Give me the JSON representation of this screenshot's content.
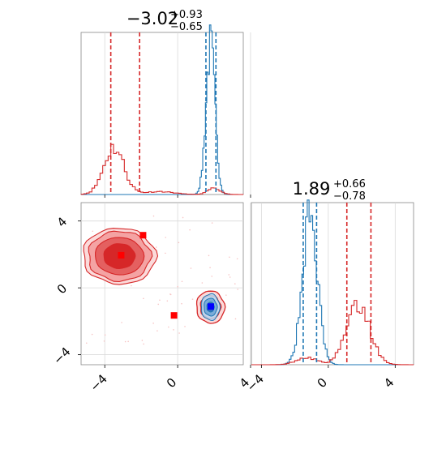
{
  "colors": {
    "blue": "#1f77b4",
    "red": "#d62728",
    "red_light": "#f4a3a3",
    "red_mid": "#e46060",
    "marker_red": "#ff0000",
    "marker_blue": "#0000ff",
    "grid": "#d9d9d9"
  },
  "chart_data": {
    "type": "corner",
    "params": [
      {
        "title_main": "−3.02",
        "title_sup": "+0.93",
        "title_sub": "−0.65",
        "range": [
          -5.3,
          3.6
        ]
      },
      {
        "title_main": "1.89",
        "title_sup": "+0.66",
        "title_sub": "−0.78",
        "range": [
          -4.6,
          5.1
        ]
      }
    ],
    "ticks": [
      -4,
      0,
      4
    ],
    "tick_labels": [
      "−4",
      "0",
      "4"
    ],
    "marginal_1": {
      "blue": {
        "mean": 1.8,
        "sd": 0.25,
        "weight": 1.0,
        "quantiles": [
          1.55,
          2.1
        ]
      },
      "red": [
        {
          "mean": -3.5,
          "sd": 0.55,
          "weight": 0.32
        },
        {
          "mean": 2.0,
          "sd": 0.35,
          "weight": 0.04
        },
        {
          "mean": -1.0,
          "sd": 0.8,
          "weight": 0.02
        }
      ],
      "red_quantiles": [
        -3.67,
        -2.09
      ]
    },
    "marginal_2": {
      "blue": {
        "mean": -1.1,
        "sd": 0.45,
        "weight": 1.0,
        "quantiles": [
          -1.5,
          -0.7
        ]
      },
      "red": [
        {
          "mean": 1.8,
          "sd": 0.7,
          "weight": 0.4
        },
        {
          "mean": -1.3,
          "sd": 0.6,
          "weight": 0.05
        }
      ],
      "red_quantiles": [
        1.11,
        2.55
      ]
    },
    "joint": {
      "red_blob": {
        "cx": -3.2,
        "cy": 1.9,
        "rx": [
          0.85,
          1.3,
          1.7,
          1.95
        ],
        "ry": [
          0.75,
          1.15,
          1.5,
          1.72
        ]
      },
      "red_small": {
        "cx": 1.8,
        "cy": -1.15,
        "rx": [
          0.35,
          0.55,
          0.75
        ],
        "ry": [
          0.45,
          0.7,
          1.0
        ]
      },
      "blue_blob": {
        "cx": 1.8,
        "cy": -1.15,
        "rx": [
          0.2,
          0.35,
          0.5
        ],
        "ry": [
          0.3,
          0.55,
          0.8
        ]
      },
      "red_markers": [
        [
          -3.1,
          1.95
        ],
        [
          -1.9,
          3.15
        ],
        [
          -0.2,
          -1.65
        ]
      ],
      "blue_marker": [
        1.82,
        -1.12
      ]
    }
  }
}
